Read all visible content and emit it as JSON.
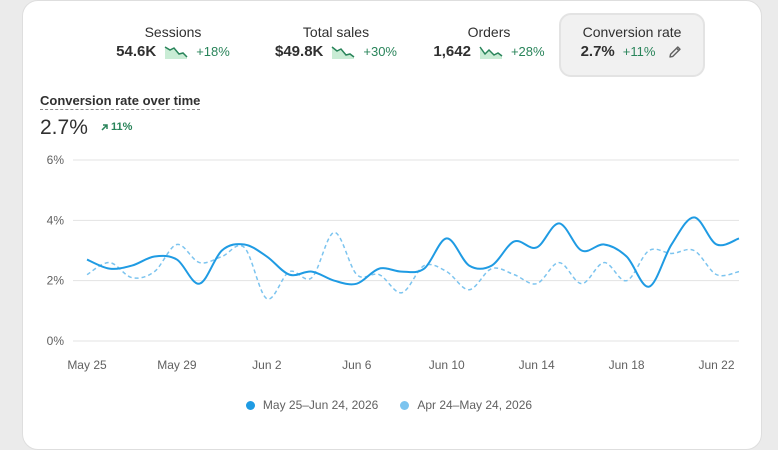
{
  "metrics": [
    {
      "label": "Sessions",
      "value": "54.6K",
      "delta": "+18%",
      "selected": false
    },
    {
      "label": "Total sales",
      "value": "$49.8K",
      "delta": "+30%",
      "selected": false
    },
    {
      "label": "Orders",
      "value": "1,642",
      "delta": "+28%",
      "selected": false
    },
    {
      "label": "Conversion rate",
      "value": "2.7%",
      "delta": "+11%",
      "selected": true
    }
  ],
  "chart_header": {
    "title": "Conversion rate over time",
    "value": "2.7%",
    "delta": "11%"
  },
  "colors": {
    "current": "#1f9be3",
    "previous": "#7cc4ef",
    "positive": "#29845a",
    "gridline": "#e3e3e3"
  },
  "chart_data": {
    "type": "line",
    "title": "Conversion rate over time",
    "y_ticks": [
      "0%",
      "2%",
      "4%",
      "6%"
    ],
    "ylim": [
      0,
      6
    ],
    "x_tick_labels": [
      "May 25",
      "May 29",
      "Jun 2",
      "Jun 6",
      "Jun 10",
      "Jun 14",
      "Jun 18",
      "Jun 22"
    ],
    "x_tick_indices": [
      0,
      4,
      8,
      12,
      16,
      20,
      24,
      28
    ],
    "series": [
      {
        "name": "May 25–Jun 24, 2026",
        "style": "solid",
        "values": [
          2.7,
          2.4,
          2.5,
          2.8,
          2.7,
          1.9,
          3.0,
          3.2,
          2.8,
          2.2,
          2.3,
          2.0,
          1.9,
          2.4,
          2.3,
          2.4,
          3.4,
          2.5,
          2.5,
          3.3,
          3.1,
          3.9,
          3.0,
          3.2,
          2.8,
          1.8,
          3.2,
          4.1,
          3.2,
          3.4
        ]
      },
      {
        "name": "Apr 24–May 24, 2026",
        "style": "dashed",
        "values": [
          2.2,
          2.6,
          2.1,
          2.3,
          3.2,
          2.6,
          2.8,
          3.1,
          1.4,
          2.3,
          2.1,
          3.6,
          2.2,
          2.2,
          1.6,
          2.5,
          2.3,
          1.7,
          2.4,
          2.2,
          1.9,
          2.6,
          1.9,
          2.6,
          2.0,
          3.0,
          2.9,
          3.0,
          2.2,
          2.3
        ]
      }
    ],
    "legend": "bottom-center",
    "grid": true
  }
}
